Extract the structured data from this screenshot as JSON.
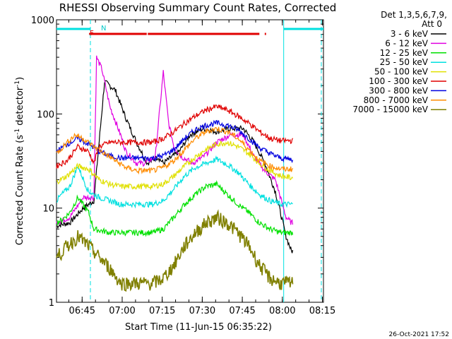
{
  "chart_data": {
    "type": "line",
    "title": "RHESSI Observing Summary Count Rates, Corrected",
    "xlabel": "Start Time (11-Jun-15 06:35:22)",
    "ylabel": "Corrected Count Rate (s⁻¹ detector⁻¹)",
    "ylabel_parts": {
      "main": "Corrected Count Rate (s",
      "exp1": "-1",
      "mid": " detector",
      "exp2": "-1",
      "close": ")"
    },
    "yscale": "log",
    "ylim": [
      1,
      1000
    ],
    "xlim_min": [
      0,
      100
    ],
    "x_unit": "minutes after 06:35:22",
    "y_ticks": [
      {
        "value": 1,
        "label": "1"
      },
      {
        "value": 10,
        "label": "10"
      },
      {
        "value": 100,
        "label": "100"
      },
      {
        "value": 1000,
        "label": "1000"
      }
    ],
    "x_ticks": [
      {
        "min": 9.6,
        "label": "06:45"
      },
      {
        "min": 24.6,
        "label": "07:00"
      },
      {
        "min": 39.6,
        "label": "07:15"
      },
      {
        "min": 54.6,
        "label": "07:30"
      },
      {
        "min": 69.6,
        "label": "07:45"
      },
      {
        "min": 84.6,
        "label": "08:00"
      },
      {
        "min": 99.6,
        "label": "08:15"
      }
    ],
    "legend": {
      "position": "right",
      "header1": "Det 1,3,5,6,7,9,",
      "header2": "Att 0"
    },
    "series": [
      {
        "name": "3 - 6 keV",
        "color": "#000000",
        "min": [
          0,
          5,
          10,
          14,
          18,
          22,
          26,
          30,
          34,
          38,
          40,
          42,
          46,
          50,
          55,
          60,
          65,
          70,
          74,
          78,
          82,
          86,
          88
        ],
        "values": [
          6.5,
          7,
          10,
          12,
          220,
          180,
          90,
          50,
          30,
          35,
          30,
          33,
          40,
          60,
          70,
          65,
          70,
          70,
          50,
          30,
          15,
          5,
          3.5
        ]
      },
      {
        "name": "6 - 12 keV",
        "color": "#e000e0",
        "min": [
          0,
          5,
          10,
          14,
          15,
          17,
          20,
          24,
          26,
          30,
          33,
          37,
          40,
          42,
          44,
          47,
          51,
          55,
          60,
          65,
          70,
          74,
          78,
          82,
          86,
          88
        ],
        "values": [
          7,
          8,
          13,
          13,
          400,
          300,
          120,
          60,
          40,
          30,
          30,
          35,
          280,
          80,
          45,
          35,
          30,
          35,
          50,
          60,
          60,
          35,
          25,
          20,
          8,
          7
        ]
      },
      {
        "name": "12 - 25 keV",
        "color": "#00e000",
        "min": [
          0,
          2,
          5,
          8,
          12,
          14,
          20,
          26,
          30,
          36,
          40,
          44,
          48,
          52,
          56,
          60,
          64,
          68,
          72,
          76,
          80,
          84,
          88
        ],
        "values": [
          7,
          7.5,
          9,
          13,
          9,
          6,
          5.5,
          5.5,
          5.5,
          5.5,
          6,
          8,
          11,
          14,
          17,
          18,
          14,
          11,
          9,
          7,
          6,
          5.5,
          5.5
        ]
      },
      {
        "name": "25 - 50 keV",
        "color": "#00e0e0",
        "min": [
          0,
          2,
          5,
          8,
          12,
          16,
          20,
          24,
          30,
          36,
          40,
          44,
          48,
          52,
          56,
          60,
          64,
          68,
          72,
          76,
          80,
          84,
          88
        ],
        "values": [
          12,
          14,
          17,
          28,
          15,
          13,
          12,
          11,
          11,
          11,
          12,
          16,
          22,
          27,
          30,
          33,
          29,
          24,
          18,
          14,
          12,
          11,
          11
        ]
      },
      {
        "name": "50 - 100 keV",
        "color": "#e0e000",
        "min": [
          0,
          4,
          8,
          12,
          16,
          20,
          24,
          30,
          36,
          40,
          44,
          48,
          52,
          56,
          60,
          64,
          68,
          72,
          76,
          80,
          84,
          88
        ],
        "values": [
          19,
          22,
          28,
          26,
          20,
          18,
          17,
          17,
          17,
          18,
          22,
          28,
          35,
          42,
          48,
          50,
          45,
          38,
          30,
          25,
          22,
          21
        ]
      },
      {
        "name": "100 - 300 keV",
        "color": "#e00000",
        "min": [
          0,
          4,
          8,
          12,
          14,
          16,
          20,
          24,
          30,
          36,
          40,
          44,
          48,
          52,
          56,
          60,
          64,
          68,
          72,
          76,
          80,
          84,
          88
        ],
        "values": [
          28,
          32,
          45,
          40,
          30,
          45,
          50,
          50,
          50,
          50,
          55,
          65,
          80,
          95,
          110,
          120,
          110,
          95,
          80,
          65,
          55,
          52,
          52
        ]
      },
      {
        "name": "300 - 800 keV",
        "color": "#0000e0",
        "min": [
          0,
          4,
          8,
          12,
          16,
          20,
          24,
          30,
          36,
          40,
          44,
          48,
          52,
          56,
          60,
          64,
          68,
          72,
          76,
          80,
          84,
          88
        ],
        "values": [
          40,
          48,
          55,
          48,
          40,
          36,
          34,
          34,
          34,
          36,
          42,
          55,
          68,
          76,
          80,
          76,
          68,
          55,
          44,
          38,
          34,
          33
        ]
      },
      {
        "name": "800 - 7000 keV",
        "color": "#ff8c00",
        "min": [
          0,
          4,
          7,
          10,
          14,
          18,
          22,
          26,
          30,
          36,
          40,
          44,
          48,
          52,
          56,
          60,
          64,
          68,
          72,
          76,
          80,
          84,
          88
        ],
        "values": [
          38,
          50,
          60,
          55,
          45,
          38,
          32,
          27,
          25,
          25,
          27,
          32,
          42,
          55,
          65,
          70,
          65,
          55,
          42,
          32,
          28,
          26,
          26
        ]
      },
      {
        "name": "7000 - 15000 keV",
        "color": "#808000",
        "min": [
          0,
          4,
          8,
          12,
          16,
          20,
          24,
          30,
          36,
          40,
          44,
          48,
          52,
          56,
          60,
          64,
          68,
          72,
          76,
          80,
          84,
          88
        ],
        "values": [
          3,
          4,
          5,
          4,
          3,
          2.3,
          1.6,
          1.6,
          1.6,
          1.8,
          2.5,
          4,
          5.5,
          7,
          8,
          7,
          5.5,
          4,
          2.5,
          1.8,
          1.6,
          1.6
        ]
      }
    ],
    "annotations": {
      "flag_F": "F",
      "flag_N": "N",
      "night_intervals_min": [
        [
          0,
          12.7
        ],
        [
          85.1,
          100
        ]
      ],
      "flare_bar_min": [
        [
          12.2,
          33.8
        ],
        [
          34.2,
          76
        ],
        [
          78,
          78.5
        ]
      ],
      "dashed_markers_min": [
        12.7,
        99.2
      ],
      "saa_vertical_min": 85.1
    }
  },
  "timestamp": "26-Oct-2021 17:52"
}
